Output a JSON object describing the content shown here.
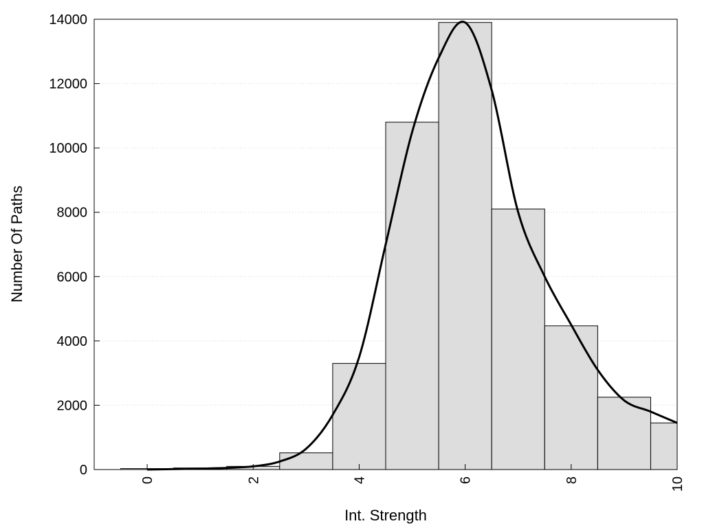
{
  "chart_data": {
    "type": "bar",
    "title": "",
    "xlabel": "Int. Strength",
    "ylabel": "Number Of Paths",
    "xlim": [
      -1,
      10
    ],
    "ylim": [
      0,
      14000
    ],
    "xticks": [
      "0",
      "2",
      "4",
      "6",
      "8",
      "10"
    ],
    "yticks": [
      "0",
      "2000",
      "4000",
      "6000",
      "8000",
      "10000",
      "12000",
      "14000"
    ],
    "grid": "horizontal dotted",
    "legend": "none",
    "colors": {
      "bar_fill": "#dddddd",
      "bar_stroke": "#000000",
      "curve": "#000000",
      "grid": "#cccccc"
    },
    "bins": {
      "centers": [
        0,
        1,
        2,
        3,
        4,
        5,
        6,
        7,
        8,
        9,
        10
      ],
      "values": [
        30,
        50,
        100,
        520,
        3300,
        10800,
        13900,
        8100,
        4470,
        2250,
        1450
      ]
    },
    "density_curve": {
      "x": [
        0,
        1,
        1.5,
        2,
        2.5,
        3,
        3.5,
        4,
        4.5,
        5,
        5.5,
        6,
        6.5,
        7,
        7.5,
        8,
        8.5,
        9,
        9.5,
        10
      ],
      "y": [
        0,
        30,
        50,
        100,
        250,
        650,
        1700,
        3500,
        7000,
        10500,
        12800,
        13900,
        11800,
        8000,
        6000,
        4500,
        3100,
        2150,
        1800,
        1450
      ]
    }
  }
}
